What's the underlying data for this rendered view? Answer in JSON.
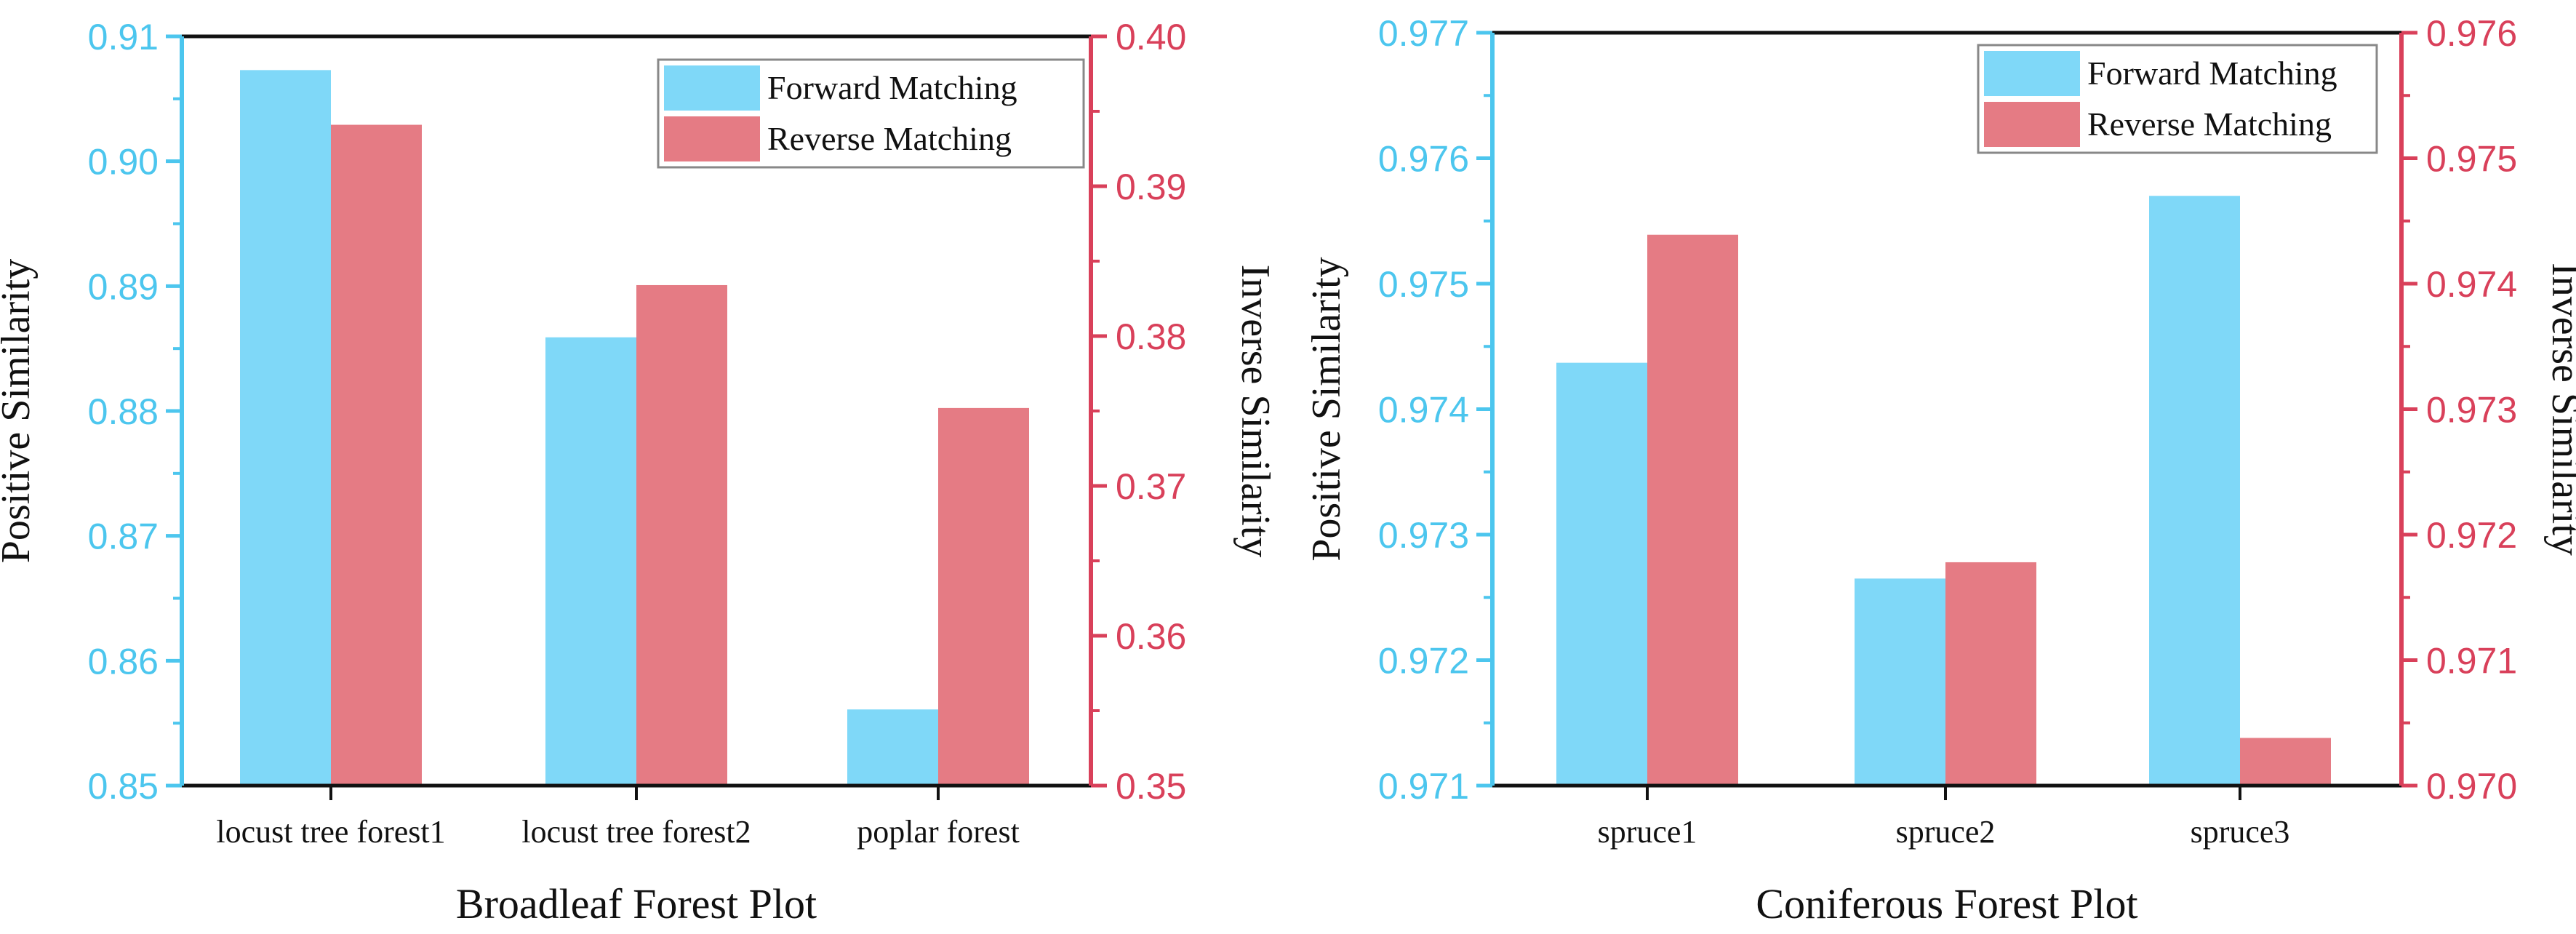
{
  "colors": {
    "forward": "#7fd8f8",
    "reverse": "#e57b84",
    "left_axis": "#4cc6ee",
    "right_axis": "#d9405a",
    "frame": "#111111"
  },
  "chart_data": [
    {
      "type": "bar",
      "xlabel": "Broadleaf Forest Plot",
      "ylabel_left": "Positive Similarity",
      "ylabel_right": "Inverse Similarity",
      "categories": [
        "locust tree forest1",
        "locust tree forest2",
        "poplar forest"
      ],
      "ylim_left": [
        0.85,
        0.91
      ],
      "ylim_right": [
        0.35,
        0.4
      ],
      "yticks_left": [
        "0.85",
        "0.86",
        "0.87",
        "0.88",
        "0.89",
        "0.90",
        "0.91"
      ],
      "yticks_right": [
        "0.35",
        "0.36",
        "0.37",
        "0.38",
        "0.39",
        "0.40"
      ],
      "legend_position": "top-right",
      "series": [
        {
          "name": "Forward Matching",
          "axis": "left",
          "values": [
            0.9073,
            0.8859,
            0.8561
          ]
        },
        {
          "name": "Reverse Matching",
          "axis": "right",
          "values": [
            0.3941,
            0.3834,
            0.3752
          ]
        }
      ]
    },
    {
      "type": "bar",
      "xlabel": "Coniferous Forest Plot",
      "ylabel_left": "Positive Similarity",
      "ylabel_right": "Inverse Similarity",
      "categories": [
        "spruce1",
        "spruce2",
        "spruce3"
      ],
      "ylim_left": [
        0.971,
        0.977
      ],
      "ylim_right": [
        0.97,
        0.976
      ],
      "yticks_left": [
        "0.971",
        "0.972",
        "0.973",
        "0.974",
        "0.975",
        "0.976",
        "0.977"
      ],
      "yticks_right": [
        "0.970",
        "0.971",
        "0.972",
        "0.973",
        "0.974",
        "0.975",
        "0.976"
      ],
      "legend_position": "top-right",
      "series": [
        {
          "name": "Forward Matching",
          "axis": "left",
          "values": [
            0.97437,
            0.97265,
            0.9757
          ]
        },
        {
          "name": "Reverse Matching",
          "axis": "right",
          "values": [
            0.97439,
            0.97178,
            0.97038
          ]
        }
      ]
    }
  ]
}
